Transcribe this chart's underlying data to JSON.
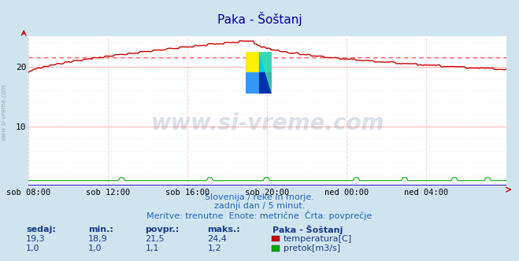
{
  "title": "Paka - Šoštanj",
  "background_color": "#d0e4f0",
  "plot_bg_color": "#ffffff",
  "grid_color_h": "#ffaaaa",
  "grid_color_v": "#ffcccc",
  "x_labels": [
    "sob 08:00",
    "sob 12:00",
    "sob 16:00",
    "sob 20:00",
    "ned 00:00",
    "ned 04:00"
  ],
  "x_ticks_norm": [
    0.0,
    0.1667,
    0.3333,
    0.5,
    0.6667,
    0.8333
  ],
  "y_min": 0,
  "y_max": 25,
  "y_ticks": [
    0,
    10,
    20
  ],
  "avg_line_value": 21.5,
  "avg_line_color": "#ff5555",
  "temp_color": "#cc0000",
  "flow_color": "#00aa00",
  "height_color": "#0000bb",
  "watermark_text": "www.si-vreme.com",
  "watermark_color": "#1a3060",
  "watermark_alpha": 0.15,
  "subtitle1": "Slovenija / reke in morje.",
  "subtitle2": "zadnji dan / 5 minut.",
  "subtitle3": "Meritve: trenutne  Enote: metrične  Črta: povprečje",
  "subtitle_color": "#2266bb",
  "legend_header": "Paka - Šoštanj",
  "legend_items": [
    {
      "label": "temperatura[C]",
      "color": "#cc0000"
    },
    {
      "label": "pretok[m3/s]",
      "color": "#00aa00"
    }
  ],
  "table_headers": [
    "sedaj:",
    "min.:",
    "povpr.:",
    "maks.:"
  ],
  "table_data": [
    [
      "19,3",
      "18,9",
      "21,5",
      "24,4"
    ],
    [
      "1,0",
      "1,0",
      "1,1",
      "1,2"
    ]
  ],
  "table_color": "#1a3a8a",
  "n_points": 288,
  "left_label": "www.si-vreme.com",
  "left_label_color": "#7799aa"
}
